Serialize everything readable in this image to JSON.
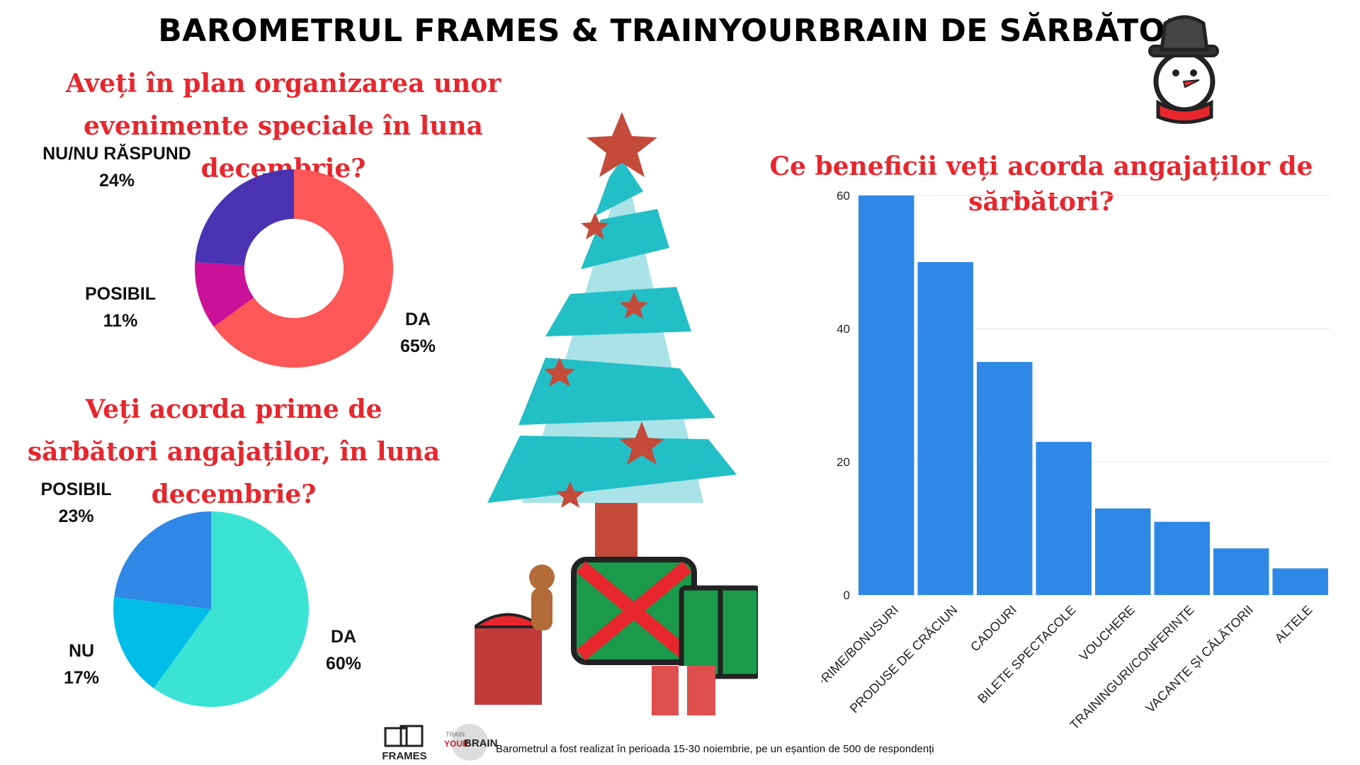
{
  "title": "BAROMETRUL FRAMES & TRAINYOURBRAIN DE SĂRBĂTORI",
  "footer_text": "Barometrul a fost realizat în perioada 15-30 noiembrie, pe un eșantion de 500 de respondenți",
  "logos": {
    "frames": "FRAMES",
    "trainyourbrain_top": "TRAIN",
    "trainyourbrain_mid": "YOUR",
    "trainyourbrain_end": "BRAIN"
  },
  "colors": {
    "title": "#000000",
    "question": "#e8262d",
    "bar": "#2f88e6"
  },
  "chart_data": [
    {
      "type": "pie",
      "donut": true,
      "title": "Aveți în plan organizarea unor evenimente speciale în luna decembrie?",
      "slices": [
        {
          "label": "DA",
          "value": 65,
          "display": "65%",
          "color": "#fd5757"
        },
        {
          "label": "POSIBIL",
          "value": 11,
          "display": "11%",
          "color": "#cc1199"
        },
        {
          "label": "NU/NU RĂSPUND",
          "value": 24,
          "display": "24%",
          "color": "#4a33b3"
        }
      ]
    },
    {
      "type": "pie",
      "donut": false,
      "title": "Veți acorda prime de sărbători angajaților, în luna decembrie?",
      "slices": [
        {
          "label": "DA",
          "value": 60,
          "display": "60%",
          "color": "#3be3d4"
        },
        {
          "label": "NU",
          "value": 17,
          "display": "17%",
          "color": "#00bde8"
        },
        {
          "label": "POSIBIL",
          "value": 23,
          "display": "23%",
          "color": "#2f88e6"
        }
      ]
    },
    {
      "type": "bar",
      "title": "Ce beneficii veți acorda angajaților de sărbători?",
      "categories": [
        "PRIME/BONUSURI",
        "PRODUSE DE CRĂCIUN",
        "CADOURI",
        "BILETE SPECTACOLE",
        "VOUCHERE",
        "TRAININGURI/CONFERINȚE",
        "VACANȚE ȘI CĂLĂTORII",
        "ALTELE"
      ],
      "values": [
        60,
        50,
        35,
        23,
        13,
        11,
        7,
        4
      ],
      "ylim": [
        0,
        60
      ],
      "yticks": [
        0,
        20,
        40,
        60
      ],
      "grid": true
    }
  ]
}
